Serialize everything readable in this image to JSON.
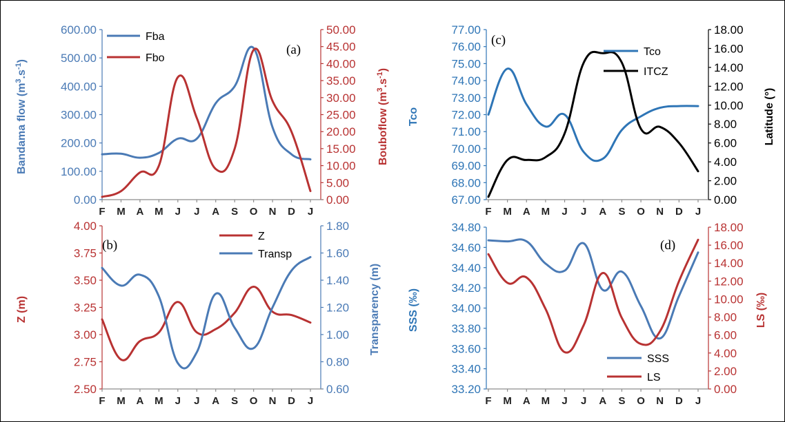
{
  "chart_data": [
    {
      "type": "line",
      "panel": "(a)",
      "categories": [
        "F",
        "M",
        "A",
        "M",
        "J",
        "J",
        "A",
        "S",
        "O",
        "N",
        "D",
        "J"
      ],
      "left_axis": {
        "label": "Bandama  flow  (m³.s⁻¹)",
        "label_parts": [
          "Bandama  flow  (m",
          "3",
          ".s",
          "-1",
          ")"
        ],
        "ylim": [
          0,
          600
        ],
        "ticks": [
          "0.00",
          "100.00",
          "200.00",
          "300.00",
          "400.00",
          "500.00",
          "600.00"
        ],
        "color": "#4a7ab5"
      },
      "right_axis": {
        "label": "Bouboflow  (m³.s⁻¹)",
        "label_parts": [
          "Bouboflow  (m",
          "3",
          ".s",
          "-1",
          ")"
        ],
        "ylim": [
          0,
          50
        ],
        "ticks": [
          "0.00",
          "5.00",
          "10.00",
          "15.00",
          "20.00",
          "25.00",
          "30.00",
          "35.00",
          "40.00",
          "45.00",
          "50.00"
        ],
        "color": "#b83232"
      },
      "series": [
        {
          "name": "Fba",
          "axis": "left",
          "color": "#4a7ab5",
          "values": [
            160,
            162,
            148,
            165,
            215,
            215,
            340,
            400,
            535,
            255,
            160,
            142
          ]
        },
        {
          "name": "Fbo",
          "axis": "right",
          "color": "#b83232",
          "values": [
            0.8,
            2.5,
            8,
            10,
            36,
            24,
            9,
            15,
            44,
            29,
            20,
            2.5
          ]
        }
      ],
      "legend": "top-left"
    },
    {
      "type": "line",
      "panel": "(b)",
      "categories": [
        "F",
        "M",
        "A",
        "M",
        "J",
        "J",
        "A",
        "S",
        "O",
        "N",
        "D",
        "J"
      ],
      "left_axis": {
        "label": "Z (m)",
        "label_parts": [
          "Z (m)"
        ],
        "ylim": [
          2.5,
          4.0
        ],
        "ticks": [
          "2.50",
          "2.75",
          "3.00",
          "3.25",
          "3.50",
          "3.75",
          "4.00"
        ],
        "color": "#b83232"
      },
      "right_axis": {
        "label": "Transparency (m)",
        "label_parts": [
          "Transparency (m)"
        ],
        "ylim": [
          0.6,
          1.8
        ],
        "ticks": [
          "0.60",
          "0.80",
          "1.00",
          "1.20",
          "1.40",
          "1.60",
          "1.80"
        ],
        "color": "#4a7ab5"
      },
      "series": [
        {
          "name": "Z",
          "axis": "left",
          "color": "#b83232",
          "values": [
            3.14,
            2.77,
            2.94,
            3.02,
            3.3,
            3.02,
            3.05,
            3.2,
            3.44,
            3.21,
            3.18,
            3.11
          ]
        },
        {
          "name": "Transp",
          "axis": "right",
          "color": "#4a7ab5",
          "values": [
            1.49,
            1.36,
            1.44,
            1.28,
            0.79,
            0.87,
            1.3,
            1.05,
            0.9,
            1.2,
            1.47,
            1.57
          ]
        }
      ],
      "legend": "top-right"
    },
    {
      "type": "line",
      "panel": "(c)",
      "categories": [
        "F",
        "M",
        "A",
        "M",
        "J",
        "J",
        "A",
        "S",
        "O",
        "N",
        "D",
        "J"
      ],
      "left_axis": {
        "label": "Tco",
        "label_parts": [
          "Tco"
        ],
        "ylim": [
          67,
          77
        ],
        "ticks": [
          "67.00",
          "68.00",
          "69.00",
          "70.00",
          "71.00",
          "72.00",
          "73.00",
          "74.00",
          "75.00",
          "76.00",
          "77.00"
        ],
        "color": "#2e75b6"
      },
      "right_axis": {
        "label": "Latitude (°)",
        "label_parts": [
          "Latitude (°)"
        ],
        "ylim": [
          0,
          18
        ],
        "ticks": [
          "0.00",
          "2.00",
          "4.00",
          "6.00",
          "8.00",
          "10.00",
          "12.00",
          "14.00",
          "16.00",
          "18.00"
        ],
        "color": "#000000"
      },
      "series": [
        {
          "name": "Tco",
          "axis": "left",
          "color": "#2e75b6",
          "values": [
            72.0,
            74.7,
            72.6,
            71.3,
            72.0,
            69.8,
            69.4,
            71.1,
            71.9,
            72.4,
            72.5,
            72.5
          ]
        },
        {
          "name": "ITCZ",
          "axis": "right",
          "color": "#000000",
          "values": [
            0.3,
            4.2,
            4.2,
            4.5,
            7.0,
            14.5,
            15.5,
            14.5,
            7.5,
            7.7,
            6.0,
            3.0
          ]
        }
      ],
      "legend": "top-right"
    },
    {
      "type": "line",
      "panel": "(d)",
      "categories": [
        "F",
        "M",
        "A",
        "M",
        "J",
        "J",
        "A",
        "S",
        "O",
        "N",
        "D",
        "J"
      ],
      "left_axis": {
        "label": "SSS (‰)",
        "label_parts": [
          "SSS (‰)"
        ],
        "ylim": [
          33.2,
          34.8
        ],
        "ticks": [
          "33.20",
          "33.40",
          "33.60",
          "33.80",
          "34.00",
          "34.20",
          "34.40",
          "34.60",
          "34.80"
        ],
        "color": "#2e75b6"
      },
      "right_axis": {
        "label": "LS (‰)",
        "label_parts": [
          "LS (‰)"
        ],
        "ylim": [
          0,
          18
        ],
        "ticks": [
          "0.00",
          "2.00",
          "4.00",
          "6.00",
          "8.00",
          "10.00",
          "12.00",
          "14.00",
          "16.00",
          "18.00"
        ],
        "color": "#b83232"
      },
      "series": [
        {
          "name": "SSS",
          "axis": "left",
          "color": "#4a7ab5",
          "values": [
            34.67,
            34.66,
            34.66,
            34.44,
            34.37,
            34.64,
            34.18,
            34.36,
            34.02,
            33.7,
            34.12,
            34.55
          ]
        },
        {
          "name": "LS",
          "axis": "right",
          "color": "#b83232",
          "values": [
            15.0,
            11.8,
            12.4,
            8.9,
            4.1,
            7.1,
            12.9,
            7.9,
            5.0,
            6.4,
            12.0,
            16.6
          ]
        }
      ],
      "legend": "bottom-right"
    }
  ]
}
